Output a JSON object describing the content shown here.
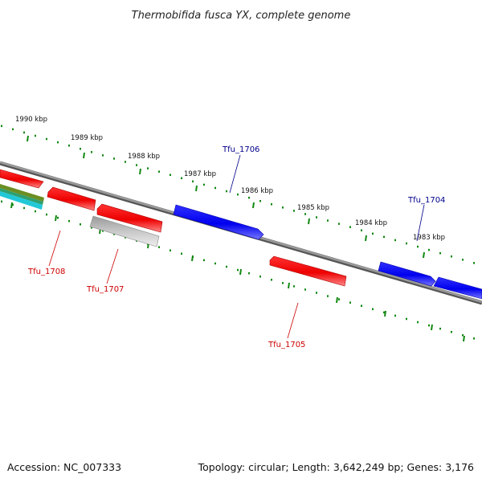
{
  "title": "Thermobifida fusca YX, complete genome",
  "footer": {
    "accession": "Accession: NC_007333",
    "summary": "Topology: circular; Length: 3,642,249 bp; Genes: 3,176"
  },
  "colors": {
    "forward_gene": "#0000ff",
    "reverse_gene": "#ff0000",
    "pseudo_gene": "#bbbbbb",
    "backbone": "#808080",
    "ticks": "#118811",
    "forward_label": "#00008b",
    "reverse_label": "#cc0000"
  },
  "scale": {
    "unit": "kbp",
    "ticks": [
      {
        "kbp": 1983,
        "label": "1983 kbp"
      },
      {
        "kbp": 1984,
        "label": "1984 kbp"
      },
      {
        "kbp": 1985,
        "label": "1985 kbp"
      },
      {
        "kbp": 1986,
        "label": "1986 kbp"
      },
      {
        "kbp": 1987,
        "label": "1987 kbp"
      },
      {
        "kbp": 1988,
        "label": "1988 kbp"
      },
      {
        "kbp": 1989,
        "label": "1989 kbp"
      },
      {
        "kbp": 1990,
        "label": "1990 kbp"
      }
    ]
  },
  "genes": [
    {
      "id": "Tfu_1704",
      "label": "Tfu_1704",
      "strand": "forward"
    },
    {
      "id": "Tfu_1705",
      "label": "Tfu_1705",
      "strand": "reverse"
    },
    {
      "id": "Tfu_1706",
      "label": "Tfu_1706",
      "strand": "forward"
    },
    {
      "id": "Tfu_1707",
      "label": "Tfu_1707",
      "strand": "reverse"
    },
    {
      "id": "Tfu_1708",
      "label": "Tfu_1708",
      "strand": "reverse"
    }
  ]
}
